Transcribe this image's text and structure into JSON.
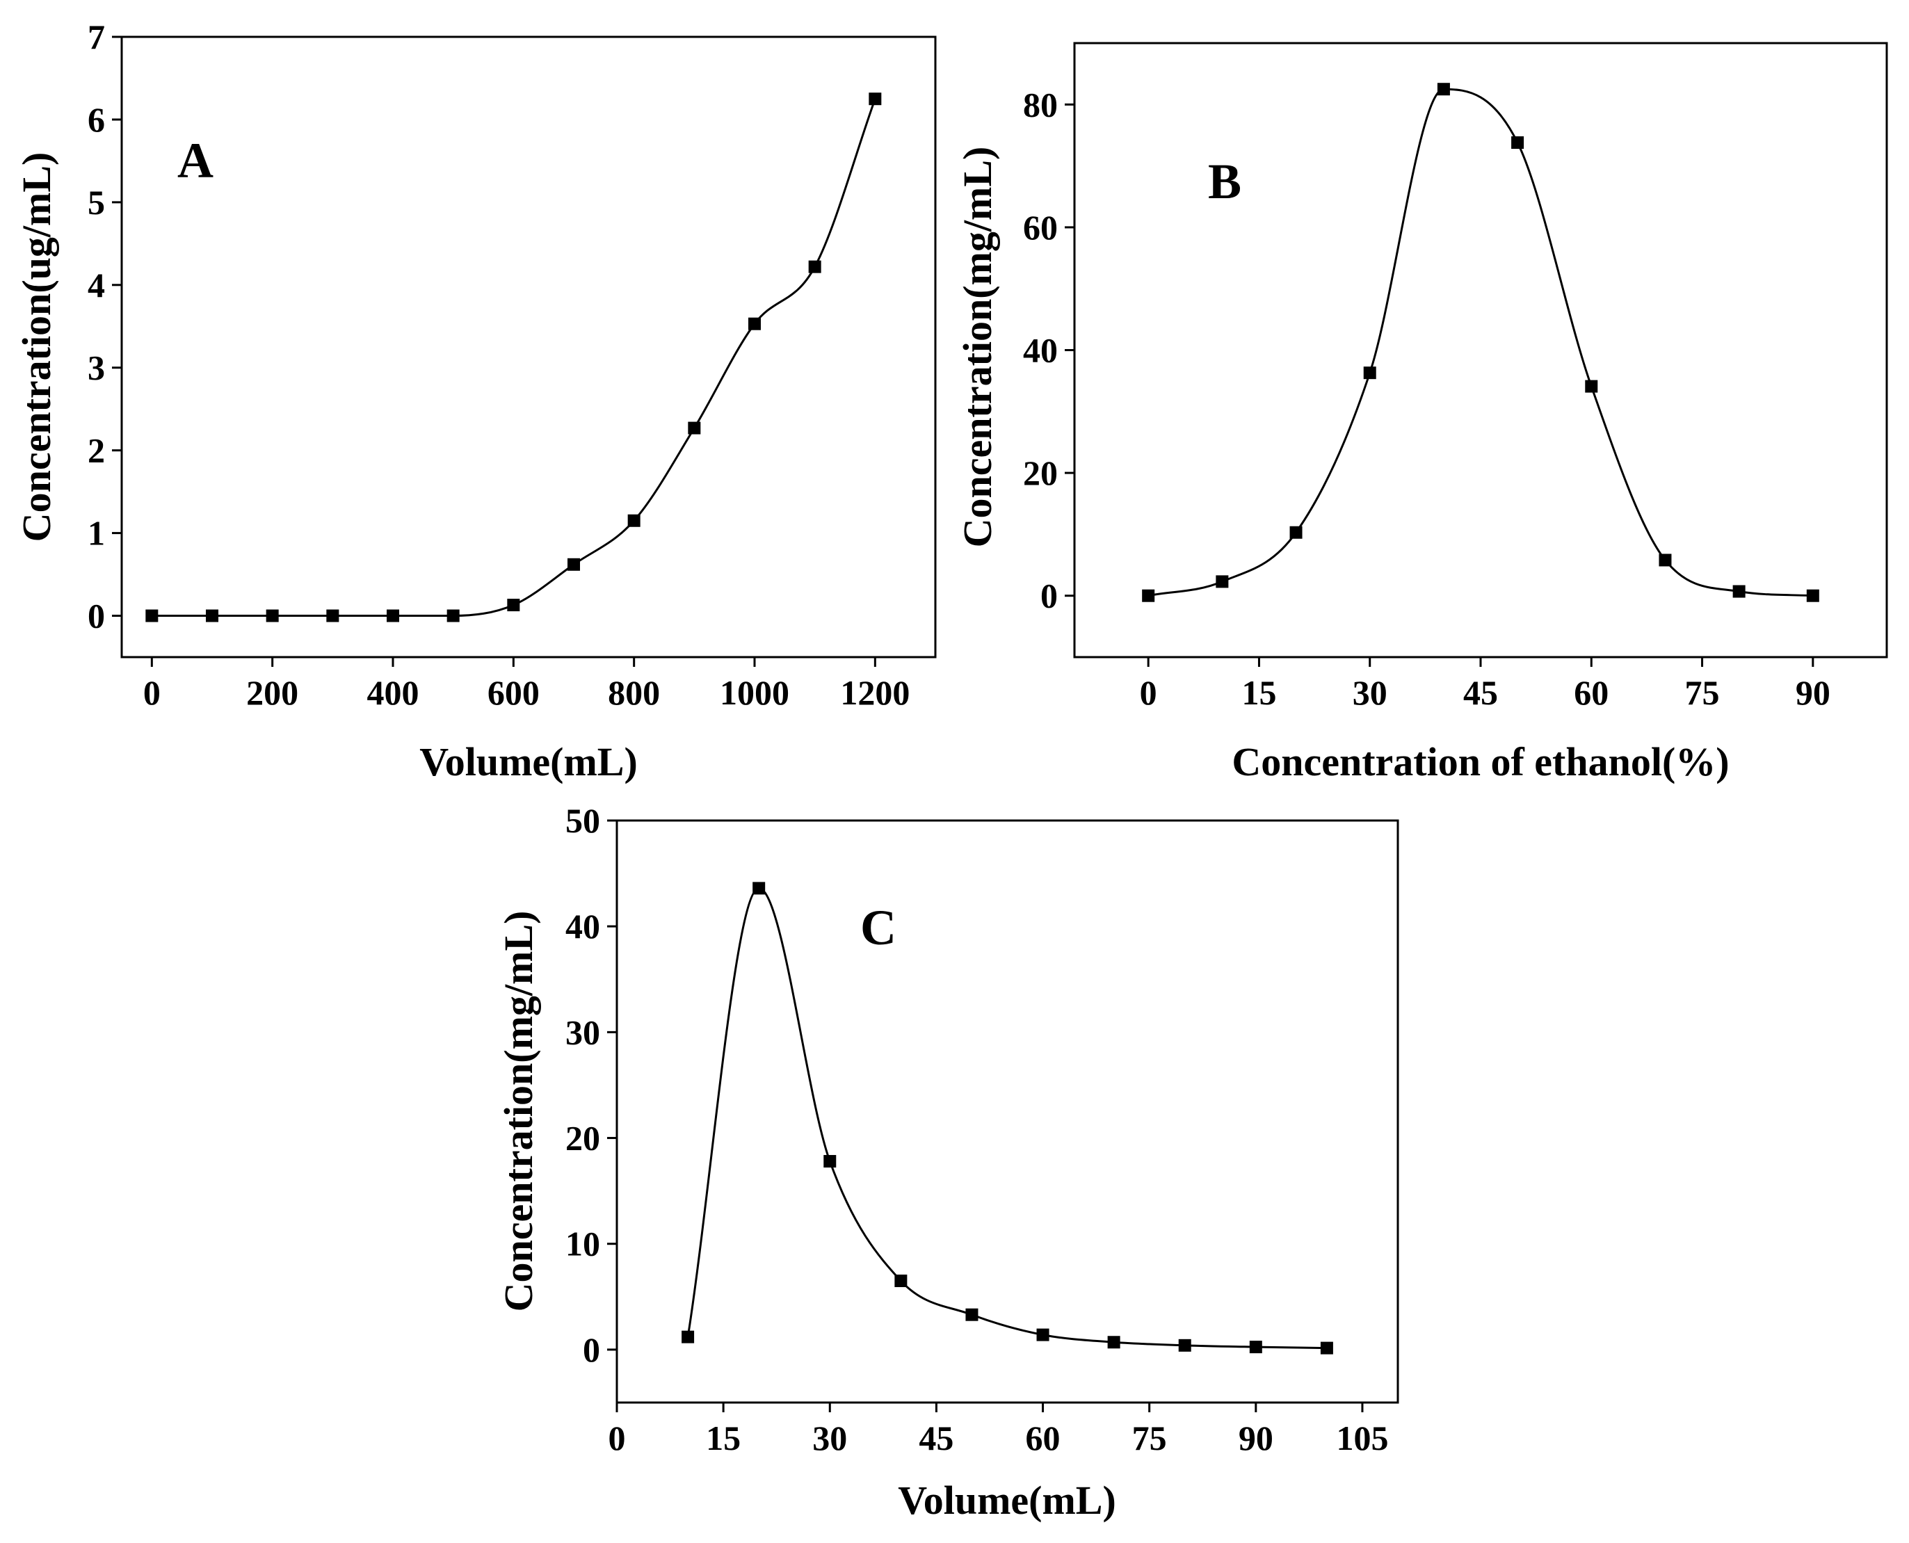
{
  "chart_data": [
    {
      "panel": "A",
      "type": "line",
      "title": "",
      "xlabel": "Volume(mL)",
      "ylabel": "Concentration(ug/mL)",
      "xlim": [
        -50,
        1300
      ],
      "ylim": [
        -0.5,
        7
      ],
      "xticks": [
        0,
        200,
        400,
        600,
        800,
        1000,
        1200
      ],
      "yticks": [
        0,
        1,
        2,
        3,
        4,
        5,
        6,
        7
      ],
      "marker": "square",
      "grid": false,
      "series": [
        {
          "name": "A",
          "x": [
            0,
            100,
            200,
            300,
            400,
            500,
            600,
            700,
            800,
            900,
            1000,
            1100,
            1200
          ],
          "y": [
            0,
            0,
            0,
            0,
            0,
            0,
            0.13,
            0.62,
            1.15,
            2.27,
            3.53,
            4.22,
            6.25
          ]
        }
      ]
    },
    {
      "panel": "B",
      "type": "line",
      "title": "",
      "xlabel": "Concentration of ethanol(%)",
      "ylabel": "Concentration(mg/mL)",
      "xlim": [
        -10,
        100
      ],
      "ylim": [
        -10,
        90
      ],
      "xticks": [
        0,
        15,
        30,
        45,
        60,
        75,
        90
      ],
      "yticks": [
        0,
        20,
        40,
        60,
        80
      ],
      "marker": "square",
      "grid": false,
      "series": [
        {
          "name": "B",
          "x": [
            0,
            10,
            20,
            30,
            40,
            50,
            60,
            70,
            80,
            90
          ],
          "y": [
            0,
            2.3,
            10.3,
            36.3,
            82.5,
            73.8,
            34.1,
            5.8,
            0.7,
            0
          ]
        }
      ]
    },
    {
      "panel": "C",
      "type": "line",
      "title": "",
      "xlabel": "Volume(mL)",
      "ylabel": "Concentration(mg/mL)",
      "xlim": [
        0,
        110
      ],
      "ylim": [
        -5,
        50
      ],
      "xticks": [
        0,
        15,
        30,
        45,
        60,
        75,
        90,
        105
      ],
      "yticks": [
        0,
        10,
        20,
        30,
        40,
        50
      ],
      "marker": "square",
      "grid": false,
      "series": [
        {
          "name": "C",
          "x": [
            10,
            20,
            30,
            40,
            50,
            60,
            70,
            80,
            90,
            100
          ],
          "y": [
            1.2,
            43.6,
            17.8,
            6.5,
            3.3,
            1.4,
            0.7,
            0.4,
            0.25,
            0.15
          ]
        }
      ]
    }
  ]
}
